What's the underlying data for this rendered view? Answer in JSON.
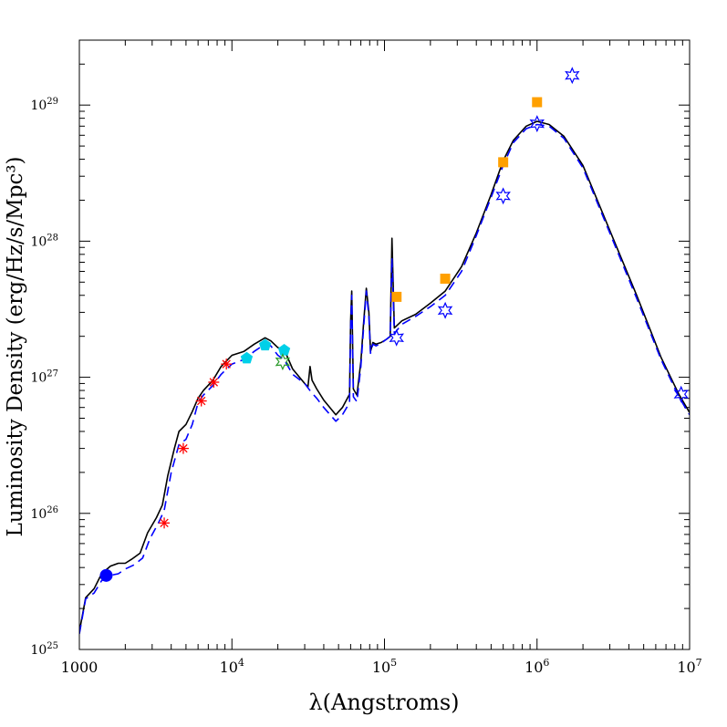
{
  "chart_data": {
    "type": "line",
    "xlabel": "λ(Angstroms)",
    "ylabel": "Luminosity Density (erg/Hz/s/Mpc³)",
    "x_scale": "log",
    "y_scale": "log",
    "xlim": [
      1000,
      10000000
    ],
    "ylim": [
      1e+25,
      3e+29
    ],
    "x_ticks": [
      {
        "value": 1000,
        "base": "1000",
        "exp": ""
      },
      {
        "value": 10000,
        "base": "10",
        "exp": "4"
      },
      {
        "value": 100000,
        "base": "10",
        "exp": "5"
      },
      {
        "value": 1000000,
        "base": "10",
        "exp": "6"
      },
      {
        "value": 10000000,
        "base": "10",
        "exp": "7"
      }
    ],
    "y_ticks": [
      {
        "value": 1e+25,
        "base": "10",
        "exp": "25"
      },
      {
        "value": 1e+26,
        "base": "10",
        "exp": "26"
      },
      {
        "value": 1e+27,
        "base": "10",
        "exp": "27"
      },
      {
        "value": 1e+28,
        "base": "10",
        "exp": "28"
      },
      {
        "value": 1e+29,
        "base": "10",
        "exp": "29"
      }
    ],
    "series": [
      {
        "style": "solid",
        "color": "#000000",
        "points": [
          [
            1000,
            1.35e+25
          ],
          [
            1100,
            2.4e+25
          ],
          [
            1250,
            2.8e+25
          ],
          [
            1400,
            3.6e+25
          ],
          [
            1600,
            4.1e+25
          ],
          [
            1800,
            4.3e+25
          ],
          [
            2000,
            4.3e+25
          ],
          [
            2200,
            4.6e+25
          ],
          [
            2500,
            5.1e+25
          ],
          [
            2800,
            7.2e+25
          ],
          [
            3200,
            9.3e+25
          ],
          [
            3500,
            1.15e+26
          ],
          [
            3800,
            1.9e+26
          ],
          [
            4200,
            3e+26
          ],
          [
            4500,
            4e+26
          ],
          [
            5000,
            4.5e+26
          ],
          [
            5500,
            5.6e+26
          ],
          [
            6000,
            7e+26
          ],
          [
            6500,
            8e+26
          ],
          [
            7500,
            9.5e+26
          ],
          [
            8500,
            1.2e+27
          ],
          [
            10000,
            1.45e+27
          ],
          [
            12000,
            1.55e+27
          ],
          [
            14000,
            1.75e+27
          ],
          [
            16500,
            1.95e+27
          ],
          [
            18000,
            1.85e+27
          ],
          [
            20000,
            1.65e+27
          ],
          [
            22000,
            1.6e+27
          ],
          [
            25000,
            1.15e+27
          ],
          [
            30000,
            9e+26
          ],
          [
            31500,
            8.5e+26
          ],
          [
            32500,
            1.2e+27
          ],
          [
            33500,
            9.5e+26
          ],
          [
            36000,
            8.2e+26
          ],
          [
            40000,
            6.8e+26
          ],
          [
            48000,
            5.3e+26
          ],
          [
            53000,
            6e+26
          ],
          [
            59000,
            7.5e+26
          ],
          [
            60000,
            2.6e+27
          ],
          [
            61000,
            4.3e+27
          ],
          [
            62500,
            8.2e+26
          ],
          [
            66000,
            7.4e+26
          ],
          [
            70000,
            1.3e+27
          ],
          [
            73000,
            2.5e+27
          ],
          [
            76000,
            4.5e+27
          ],
          [
            79000,
            3e+27
          ],
          [
            81000,
            1.55e+27
          ],
          [
            84000,
            1.8e+27
          ],
          [
            88000,
            1.75e+27
          ],
          [
            95000,
            1.8e+27
          ],
          [
            103000,
            1.9e+27
          ],
          [
            109000,
            2e+27
          ],
          [
            112000,
            1.05e+28
          ],
          [
            116000,
            2.3e+27
          ],
          [
            130000,
            2.6e+27
          ],
          [
            160000,
            2.9e+27
          ],
          [
            200000,
            3.5e+27
          ],
          [
            250000,
            4.3e+27
          ],
          [
            320000,
            6.5e+27
          ],
          [
            400000,
            1.15e+28
          ],
          [
            500000,
            2.2e+28
          ],
          [
            600000,
            3.9e+28
          ],
          [
            700000,
            5.5e+28
          ],
          [
            850000,
            7e+28
          ],
          [
            1000000,
            7.6e+28
          ],
          [
            1200000,
            7.2e+28
          ],
          [
            1500000,
            5.9e+28
          ],
          [
            2000000,
            3.6e+28
          ],
          [
            3000000,
            1.2e+28
          ],
          [
            4500000,
            4e+27
          ],
          [
            6500000,
            1.4e+27
          ],
          [
            8500000,
            7.5e+26
          ],
          [
            10000000,
            5.5e+26
          ]
        ]
      },
      {
        "style": "dashed",
        "color": "#0000ff",
        "points": [
          [
            1000,
            1.3e+25
          ],
          [
            1100,
            2.35e+25
          ],
          [
            1250,
            2.6e+25
          ],
          [
            1400,
            3.2e+25
          ],
          [
            1600,
            3.5e+25
          ],
          [
            1800,
            3.6e+25
          ],
          [
            2000,
            3.9e+25
          ],
          [
            2300,
            4.2e+25
          ],
          [
            2600,
            4.7e+25
          ],
          [
            2900,
            6.5e+25
          ],
          [
            3300,
            8.5e+25
          ],
          [
            3600,
            1.05e+26
          ],
          [
            4000,
            2e+26
          ],
          [
            4500,
            3.2e+26
          ],
          [
            5000,
            3.5e+26
          ],
          [
            5500,
            4.5e+26
          ],
          [
            6000,
            6.5e+26
          ],
          [
            6500,
            7.4e+26
          ],
          [
            7500,
            8.7e+26
          ],
          [
            8500,
            1.05e+27
          ],
          [
            10000,
            1.25e+27
          ],
          [
            12000,
            1.35e+27
          ],
          [
            14000,
            1.55e+27
          ],
          [
            16500,
            1.75e+27
          ],
          [
            18000,
            1.7e+27
          ],
          [
            20000,
            1.45e+27
          ],
          [
            22000,
            1.35e+27
          ],
          [
            25000,
            1.05e+27
          ],
          [
            30000,
            9e+26
          ],
          [
            33000,
            7.8e+26
          ],
          [
            36000,
            7e+26
          ],
          [
            40000,
            6e+26
          ],
          [
            48000,
            4.75e+26
          ],
          [
            53000,
            5.3e+26
          ],
          [
            59000,
            6.5e+26
          ],
          [
            60000,
            2.3e+27
          ],
          [
            61000,
            4e+27
          ],
          [
            62500,
            7.2e+26
          ],
          [
            66000,
            6.6e+26
          ],
          [
            70000,
            1.2e+27
          ],
          [
            73000,
            2.3e+27
          ],
          [
            76000,
            4.3e+27
          ],
          [
            79000,
            2.8e+27
          ],
          [
            81000,
            1.5e+27
          ],
          [
            84000,
            1.75e+27
          ],
          [
            88000,
            1.7e+27
          ],
          [
            95000,
            1.78e+27
          ],
          [
            103000,
            1.9e+27
          ],
          [
            109000,
            2e+27
          ],
          [
            112000,
            7.5e+27
          ],
          [
            116000,
            2.1e+27
          ],
          [
            130000,
            2.45e+27
          ],
          [
            160000,
            2.8e+27
          ],
          [
            200000,
            3.3e+27
          ],
          [
            250000,
            4e+27
          ],
          [
            320000,
            6e+27
          ],
          [
            400000,
            1.1e+28
          ],
          [
            500000,
            2.1e+28
          ],
          [
            600000,
            3.6e+28
          ],
          [
            700000,
            5.3e+28
          ],
          [
            850000,
            6.7e+28
          ],
          [
            1000000,
            7.2e+28
          ],
          [
            1200000,
            7e+28
          ],
          [
            1500000,
            5.7e+28
          ],
          [
            2000000,
            3.45e+28
          ],
          [
            3000000,
            1.15e+28
          ],
          [
            4500000,
            3.8e+27
          ],
          [
            6500000,
            1.35e+27
          ],
          [
            8500000,
            7.2e+26
          ],
          [
            10000000,
            5.3e+26
          ]
        ]
      }
    ],
    "markers": [
      {
        "symbol": "circle",
        "color": "#0000ff",
        "fill": true,
        "points": [
          [
            1500,
            3.5e+25
          ]
        ]
      },
      {
        "symbol": "asterisk",
        "color": "#ff0000",
        "fill": false,
        "points": [
          [
            3600,
            8.5e+25
          ],
          [
            4800,
            3e+26
          ],
          [
            6300,
            6.7e+26
          ],
          [
            7600,
            9.2e+26
          ],
          [
            9200,
            1.25e+27
          ]
        ]
      },
      {
        "symbol": "pentagon",
        "color": "#00d0e8",
        "fill": true,
        "points": [
          [
            12500,
            1.38e+27
          ],
          [
            16500,
            1.72e+27
          ],
          [
            22000,
            1.58e+27
          ]
        ]
      },
      {
        "symbol": "star",
        "color": "#2a9a2a",
        "fill": false,
        "points": [
          [
            21500,
            1.3e+27
          ]
        ]
      },
      {
        "symbol": "square",
        "color": "#ffa000",
        "fill": true,
        "points": [
          [
            120000,
            3.9e+27
          ],
          [
            250000,
            5.3e+27
          ],
          [
            600000,
            3.8e+28
          ],
          [
            1000000,
            1.05e+29
          ]
        ]
      },
      {
        "symbol": "star",
        "color": "#0000ff",
        "fill": false,
        "points": [
          [
            120000,
            1.95e+27
          ],
          [
            250000,
            3.1e+27
          ],
          [
            600000,
            2.15e+28
          ],
          [
            1000000,
            7.3e+28
          ],
          [
            1700000,
            1.65e+29
          ],
          [
            8800000,
            7.5e+26
          ]
        ]
      }
    ]
  }
}
